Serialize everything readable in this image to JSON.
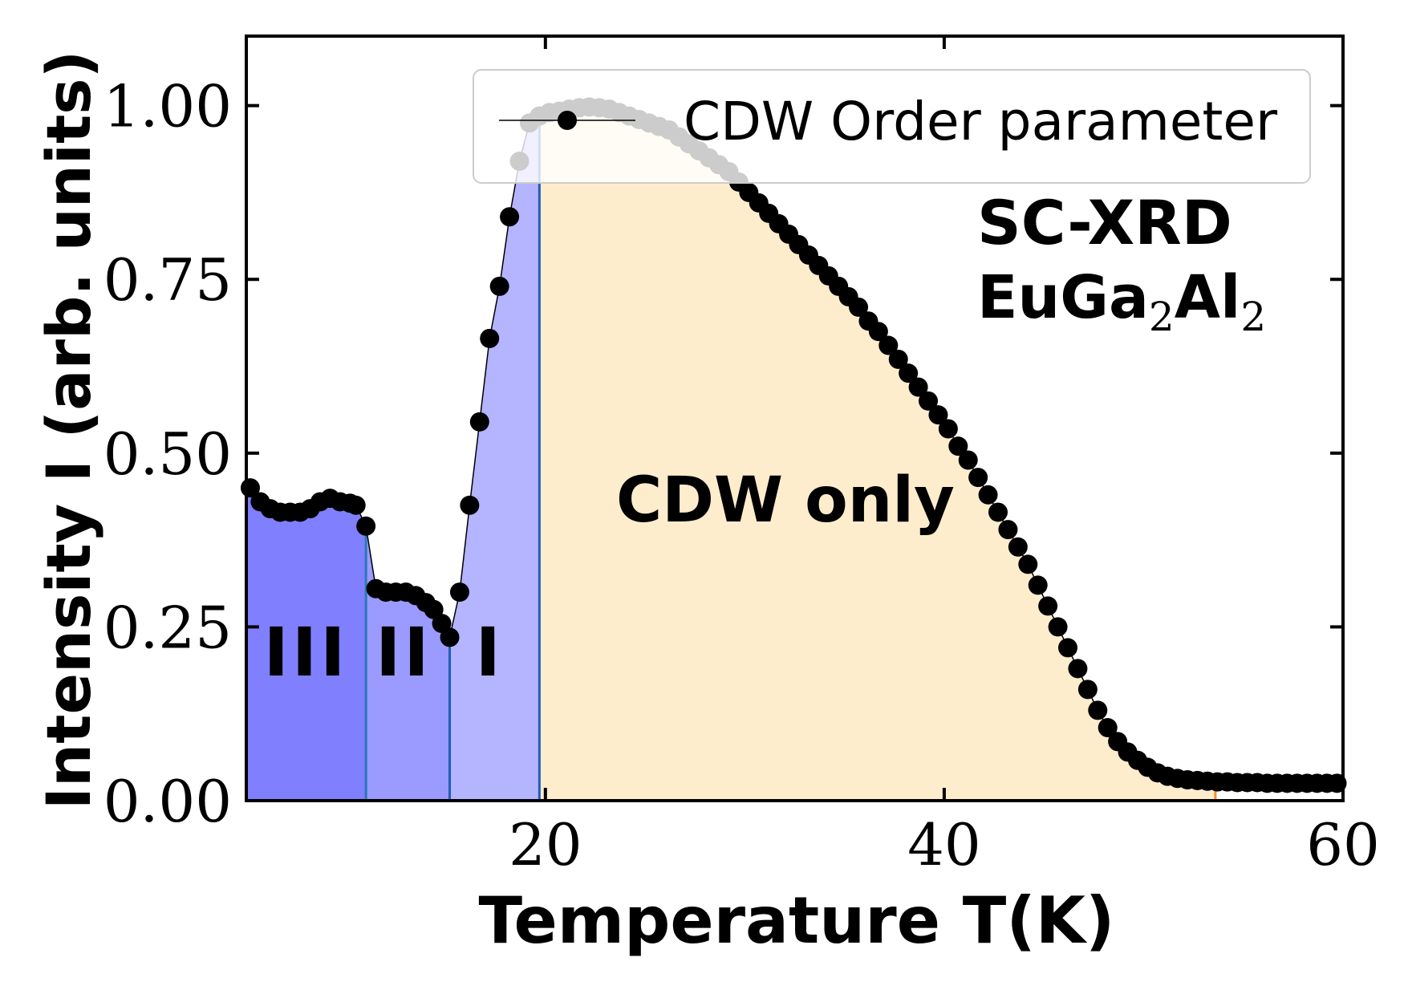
{
  "chart_data": {
    "type": "line",
    "xlabel": "Temperature T(K)",
    "ylabel": "Intensity I (arb. units)",
    "xlim": [
      5,
      60
    ],
    "ylim": [
      0,
      1.1
    ],
    "x_ticks": [
      "20",
      "40",
      "60"
    ],
    "y_ticks": [
      "0.00",
      "0.25",
      "0.50",
      "0.75",
      "1.00"
    ],
    "legend": {
      "label": "CDW Order parameter",
      "position": "top-right"
    },
    "annotations": {
      "sample_method": "SC-XRD",
      "sample_formula_parts": [
        "EuGa",
        "2",
        "Al",
        "2"
      ],
      "phase_label": "CDW only",
      "region_labels": [
        "III",
        "II",
        "I"
      ]
    },
    "regions": [
      {
        "label": "III",
        "x_start": 5,
        "x_end": 11,
        "color": "#8080ff"
      },
      {
        "label": "II",
        "x_start": 11,
        "x_end": 15.2,
        "color": "#9a9aff"
      },
      {
        "label": "I",
        "x_start": 15.2,
        "x_end": 19.7,
        "color": "#b4b4ff"
      },
      {
        "label": "CDW only",
        "x_start": 19.7,
        "x_end": 53.6,
        "color": "#feedcd"
      }
    ],
    "boundary_lines": [
      {
        "x": 11,
        "color": "#2a78b5"
      },
      {
        "x": 15.2,
        "color": "#1f5fb0"
      },
      {
        "x": 19.7,
        "color": "#1f5fb0"
      },
      {
        "x": 53.6,
        "color": "#ff8c1a"
      }
    ],
    "series": [
      {
        "name": "CDW Order parameter",
        "color": "#000000",
        "x": [
          5.2,
          5.7,
          6.2,
          6.7,
          7.2,
          7.7,
          8.2,
          8.7,
          9.2,
          9.7,
          10.2,
          10.5,
          11.0,
          11.5,
          12.0,
          12.5,
          13.0,
          13.5,
          14.0,
          14.4,
          14.8,
          15.2,
          15.7,
          16.2,
          16.7,
          17.2,
          17.7,
          18.2,
          18.7,
          19.2,
          19.7,
          20.2,
          20.7,
          21.2,
          21.7,
          22.2,
          22.7,
          23.2,
          23.7,
          24.2,
          24.7,
          25.2,
          25.7,
          26.2,
          26.7,
          27.2,
          27.7,
          28.2,
          28.7,
          29.2,
          29.7,
          30.2,
          30.7,
          31.2,
          31.7,
          32.2,
          32.7,
          33.2,
          33.7,
          34.2,
          34.7,
          35.2,
          35.7,
          36.2,
          36.7,
          37.2,
          37.7,
          38.2,
          38.7,
          39.2,
          39.7,
          40.2,
          40.7,
          41.2,
          41.7,
          42.2,
          42.7,
          43.2,
          43.7,
          44.2,
          44.7,
          45.2,
          45.7,
          46.2,
          46.7,
          47.2,
          47.7,
          48.2,
          48.7,
          49.2,
          49.7,
          50.2,
          50.7,
          51.2,
          51.7,
          52.2,
          52.7,
          53.2,
          53.7,
          54.2,
          54.7,
          55.2,
          55.7,
          56.2,
          56.7,
          57.2,
          57.7,
          58.2,
          58.7,
          59.2,
          59.7
        ],
        "values": [
          0.45,
          0.43,
          0.42,
          0.415,
          0.415,
          0.415,
          0.42,
          0.43,
          0.435,
          0.43,
          0.428,
          0.425,
          0.395,
          0.305,
          0.3,
          0.3,
          0.3,
          0.295,
          0.285,
          0.275,
          0.255,
          0.235,
          0.3,
          0.425,
          0.545,
          0.665,
          0.74,
          0.84,
          0.92,
          0.975,
          0.985,
          0.99,
          0.992,
          0.995,
          0.997,
          0.998,
          0.997,
          0.995,
          0.99,
          0.985,
          0.98,
          0.975,
          0.97,
          0.965,
          0.955,
          0.945,
          0.935,
          0.925,
          0.915,
          0.905,
          0.89,
          0.875,
          0.86,
          0.845,
          0.83,
          0.815,
          0.8,
          0.785,
          0.77,
          0.755,
          0.74,
          0.725,
          0.71,
          0.69,
          0.675,
          0.655,
          0.635,
          0.615,
          0.595,
          0.575,
          0.555,
          0.535,
          0.51,
          0.49,
          0.465,
          0.44,
          0.415,
          0.39,
          0.365,
          0.34,
          0.31,
          0.28,
          0.25,
          0.22,
          0.19,
          0.16,
          0.13,
          0.105,
          0.085,
          0.07,
          0.058,
          0.048,
          0.04,
          0.035,
          0.032,
          0.03,
          0.029,
          0.028,
          0.027,
          0.027,
          0.026,
          0.026,
          0.026,
          0.025,
          0.025,
          0.025,
          0.025,
          0.025,
          0.025,
          0.025,
          0.025
        ]
      }
    ]
  }
}
